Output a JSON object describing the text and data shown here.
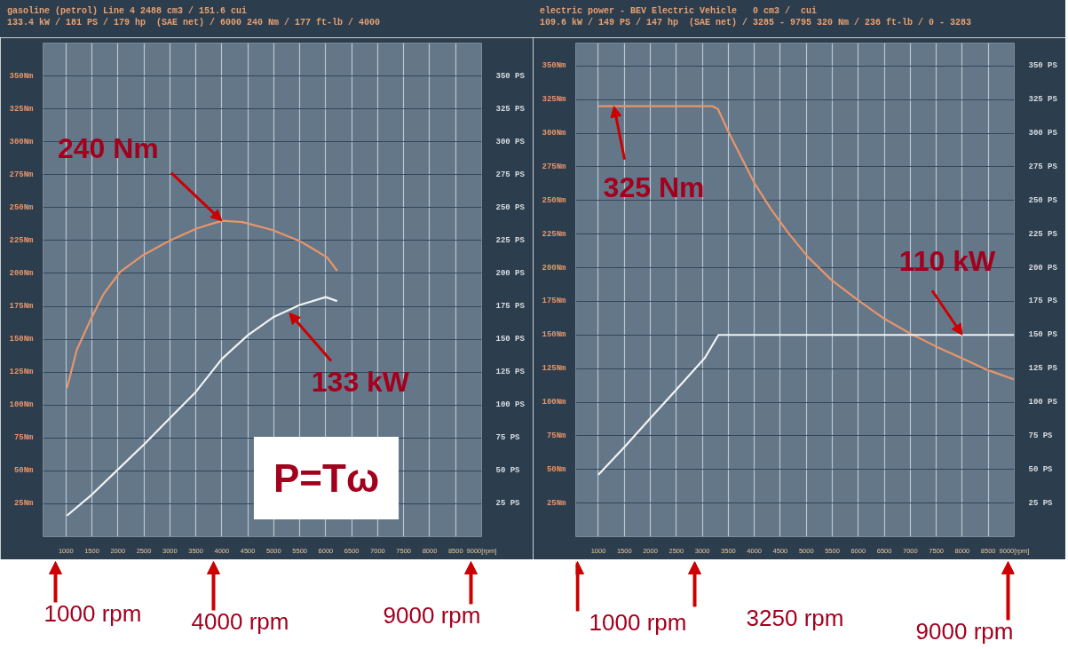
{
  "chart_data": [
    {
      "type": "line",
      "subtitle": "gasoline (petrol) Line 4 2488 cm3 / 151.6 cui\n133.4 kW / 181 PS / 179 hp  (SAE net) / 6000 240 Nm / 177 ft-lb / 4000",
      "xlim": [
        560,
        9000
      ],
      "xticks": [
        1000,
        1500,
        2000,
        2500,
        3000,
        3500,
        4000,
        4500,
        5000,
        5500,
        6000,
        6500,
        7000,
        7500,
        8000,
        8500,
        {
          "value": 9000,
          "label": "9000[rpm]"
        }
      ],
      "ylim": [
        0,
        375
      ],
      "yticks": [
        {
          "value": 25,
          "label": "25Nm"
        },
        {
          "value": 50,
          "label": "50Nm"
        },
        {
          "value": 75,
          "label": "75Nm"
        },
        {
          "value": 100,
          "label": "100Nm"
        },
        {
          "value": 125,
          "label": "125Nm"
        },
        {
          "value": 150,
          "label": "150Nm"
        },
        {
          "value": 175,
          "label": "175Nm"
        },
        {
          "value": 200,
          "label": "200Nm"
        },
        {
          "value": 225,
          "label": "225Nm"
        },
        {
          "value": 250,
          "label": "250Nm"
        },
        {
          "value": 275,
          "label": "275Nm"
        },
        {
          "value": 300,
          "label": "300Nm"
        },
        {
          "value": 325,
          "label": "325Nm"
        },
        {
          "value": 350,
          "label": "350Nm"
        }
      ],
      "y2lim": [
        0,
        375
      ],
      "y2ticks": [
        {
          "value": 25,
          "label": "25 PS"
        },
        {
          "value": 50,
          "label": "50 PS"
        },
        {
          "value": 75,
          "label": "75 PS"
        },
        {
          "value": 100,
          "label": "100 PS"
        },
        {
          "value": 125,
          "label": "125 PS"
        },
        {
          "value": 150,
          "label": "150 PS"
        },
        {
          "value": 175,
          "label": "175 PS"
        },
        {
          "value": 200,
          "label": "200 PS"
        },
        {
          "value": 225,
          "label": "225 PS"
        },
        {
          "value": 250,
          "label": "250 PS"
        },
        {
          "value": 275,
          "label": "275 PS"
        },
        {
          "value": 300,
          "label": "300 PS"
        },
        {
          "value": 325,
          "label": "325 PS"
        },
        {
          "value": 350,
          "label": "350 PS"
        }
      ],
      "grid": true,
      "series": [
        {
          "color": "#e8956a",
          "x": [
            1020,
            1210,
            1500,
            1720,
            2040,
            2490,
            3000,
            3510,
            3830,
            4020,
            4400,
            4970,
            5480,
            5740,
            6030,
            6220
          ],
          "values": [
            113,
            142,
            167,
            184,
            201,
            214,
            225,
            234,
            238,
            240,
            239,
            233,
            225,
            219,
            212,
            202
          ]
        },
        {
          "color": "#f2f2f2",
          "x": [
            1020,
            1500,
            2000,
            2500,
            3000,
            3500,
            4000,
            4500,
            5000,
            5500,
            6000,
            6220
          ],
          "values": [
            16,
            32,
            51,
            70,
            90,
            110,
            135,
            153,
            167,
            176,
            182,
            179
          ]
        }
      ],
      "annotations": [
        {
          "text": "240 Nm",
          "x": 4000,
          "y": 240
        },
        {
          "text": "133 kW",
          "x": 5300,
          "y": 170
        },
        "P=Tω",
        "1000 rpm",
        "4000 rpm",
        "9000 rpm"
      ]
    },
    {
      "type": "line",
      "subtitle": "electric power - BEV Electric Vehicle   0 cm3 /  cui\n109.6 kW / 149 PS / 147 hp  (SAE net) / 3285 - 9795 320 Nm / 236 ft-lb / 0 - 3283",
      "xlim": [
        565,
        9000
      ],
      "xticks": [
        1000,
        1500,
        2000,
        2500,
        3000,
        3500,
        4000,
        4500,
        5000,
        5500,
        6000,
        6500,
        7000,
        7500,
        8000,
        8500,
        {
          "value": 9000,
          "label": "9000[rpm]"
        }
      ],
      "ylim": [
        0,
        367
      ],
      "yticks": [
        {
          "value": 25,
          "label": "25Nm"
        },
        {
          "value": 50,
          "label": "50Nm"
        },
        {
          "value": 75,
          "label": "75Nm"
        },
        {
          "value": 100,
          "label": "100Nm"
        },
        {
          "value": 125,
          "label": "125Nm"
        },
        {
          "value": 150,
          "label": "150Nm"
        },
        {
          "value": 175,
          "label": "175Nm"
        },
        {
          "value": 200,
          "label": "200Nm"
        },
        {
          "value": 225,
          "label": "225Nm"
        },
        {
          "value": 250,
          "label": "250Nm"
        },
        {
          "value": 275,
          "label": "275Nm"
        },
        {
          "value": 300,
          "label": "300Nm"
        },
        {
          "value": 325,
          "label": "325Nm"
        },
        {
          "value": 350,
          "label": "350Nm"
        }
      ],
      "y2lim": [
        0,
        367
      ],
      "y2ticks": [
        {
          "value": 25,
          "label": "25 PS"
        },
        {
          "value": 50,
          "label": "50 PS"
        },
        {
          "value": 75,
          "label": "75 PS"
        },
        {
          "value": 100,
          "label": "100 PS"
        },
        {
          "value": 125,
          "label": "125 PS"
        },
        {
          "value": 150,
          "label": "150 PS"
        },
        {
          "value": 175,
          "label": "175 PS"
        },
        {
          "value": 200,
          "label": "200 PS"
        },
        {
          "value": 225,
          "label": "225 PS"
        },
        {
          "value": 250,
          "label": "250 PS"
        },
        {
          "value": 275,
          "label": "275 PS"
        },
        {
          "value": 300,
          "label": "300 PS"
        },
        {
          "value": 325,
          "label": "325 PS"
        },
        {
          "value": 350,
          "label": "350 PS"
        }
      ],
      "grid": true,
      "series": [
        {
          "color": "#e8956a",
          "x": [
            1000,
            3200,
            3300,
            3490,
            3750,
            4000,
            4330,
            4650,
            5030,
            5480,
            5990,
            6500,
            7000,
            7520,
            8030,
            8480,
            8990
          ],
          "values": [
            320,
            320,
            318,
            302,
            282,
            263,
            243,
            226,
            208,
            191,
            176,
            162,
            151,
            141,
            132,
            124,
            117
          ]
        },
        {
          "color": "#f2f2f2",
          "x": [
            1000,
            1510,
            2020,
            2540,
            3050,
            3310,
            9000
          ],
          "values": [
            46,
            67,
            89,
            111,
            133,
            150,
            150
          ]
        }
      ],
      "annotations": [
        {
          "text": "325 Nm",
          "x": 1300,
          "y": 320
        },
        {
          "text": "110 kW",
          "x": 8000,
          "y": 150
        },
        "1000 rpm",
        "3250 rpm",
        "9000 rpm"
      ]
    }
  ]
}
